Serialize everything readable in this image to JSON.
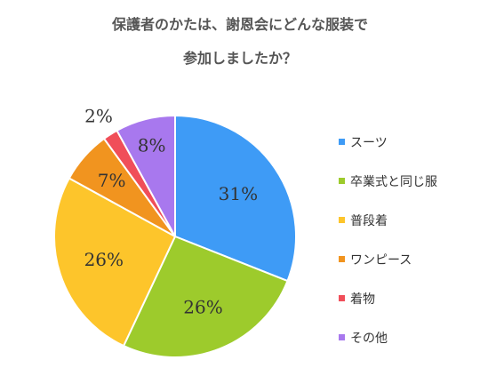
{
  "chart_data": {
    "type": "pie",
    "title_lines": [
      "保護者のかたは、謝恩会にどんな服装で",
      "参加しましたか？"
    ],
    "categories": [
      "スーツ",
      "卒業式と同じ服",
      "普段着",
      "ワンピース",
      "着物",
      "その他"
    ],
    "values": [
      31,
      26,
      26,
      7,
      2,
      8
    ],
    "labels": [
      "31%",
      "26%",
      "26%",
      "7%",
      "2%",
      "8%"
    ],
    "colors": [
      "#3E9BF6",
      "#9DCB2C",
      "#FDC52B",
      "#F1941F",
      "#F04E59",
      "#A878EE"
    ],
    "legend_position": "right"
  }
}
